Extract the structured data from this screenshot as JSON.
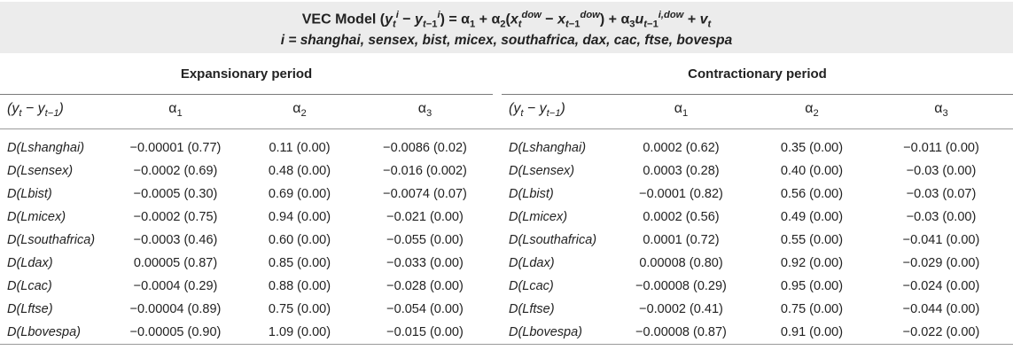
{
  "title": {
    "prefix": "VEC Model",
    "line2": "i = shanghai, sensex, bist, micex, southafrica, dax, cac, ftse, bovespa"
  },
  "groups": [
    "Expansionary period",
    "Contractionary period"
  ],
  "columns": [
    "(y_t − y_{t−1})",
    "α1",
    "α2",
    "α3"
  ],
  "rows": [
    {
      "label": "D(Lshanghai)",
      "exp": [
        "−0.00001 (0.77)",
        "0.11 (0.00)",
        "−0.0086 (0.02)"
      ],
      "con": [
        "0.0002 (0.62)",
        "0.35 (0.00)",
        "−0.011 (0.00)"
      ]
    },
    {
      "label": "D(Lsensex)",
      "exp": [
        "−0.0002 (0.69)",
        "0.48 (0.00)",
        "−0.016 (0.002)"
      ],
      "con": [
        "0.0003 (0.28)",
        "0.40 (0.00)",
        "−0.03 (0.00)"
      ]
    },
    {
      "label": "D(Lbist)",
      "exp": [
        "−0.0005 (0.30)",
        "0.69 (0.00)",
        "−0.0074 (0.07)"
      ],
      "con": [
        "−0.0001 (0.82)",
        "0.56 (0.00)",
        "−0.03 (0.07)"
      ]
    },
    {
      "label": "D(Lmicex)",
      "exp": [
        "−0.0002 (0.75)",
        "0.94 (0.00)",
        "−0.021 (0.00)"
      ],
      "con": [
        "0.0002 (0.56)",
        "0.49 (0.00)",
        "−0.03 (0.00)"
      ]
    },
    {
      "label": "D(Lsouthafrica)",
      "exp": [
        "−0.0003 (0.46)",
        "0.60 (0.00)",
        "−0.055 (0.00)"
      ],
      "con": [
        "0.0001 (0.72)",
        "0.55 (0.00)",
        "−0.041 (0.00)"
      ]
    },
    {
      "label": "D(Ldax)",
      "exp": [
        "0.00005 (0.87)",
        "0.85 (0.00)",
        "−0.033 (0.00)"
      ],
      "con": [
        "0.00008 (0.80)",
        "0.92 (0.00)",
        "−0.029 (0.00)"
      ]
    },
    {
      "label": "D(Lcac)",
      "exp": [
        "−0.0004 (0.29)",
        "0.88 (0.00)",
        "−0.028 (0.00)"
      ],
      "con": [
        "−0.00008 (0.29)",
        "0.95 (0.00)",
        "−0.024 (0.00)"
      ]
    },
    {
      "label": "D(Lftse)",
      "exp": [
        "−0.00004 (0.89)",
        "0.75 (0.00)",
        "−0.054 (0.00)"
      ],
      "con": [
        "−0.0002 (0.41)",
        "0.75 (0.00)",
        "−0.044 (0.00)"
      ]
    },
    {
      "label": "D(Lbovespa)",
      "exp": [
        "−0.00005 (0.90)",
        "1.09 (0.00)",
        "−0.015 (0.00)"
      ],
      "con": [
        "−0.00008 (0.87)",
        "0.91 (0.00)",
        "−0.022 (0.00)"
      ]
    }
  ]
}
